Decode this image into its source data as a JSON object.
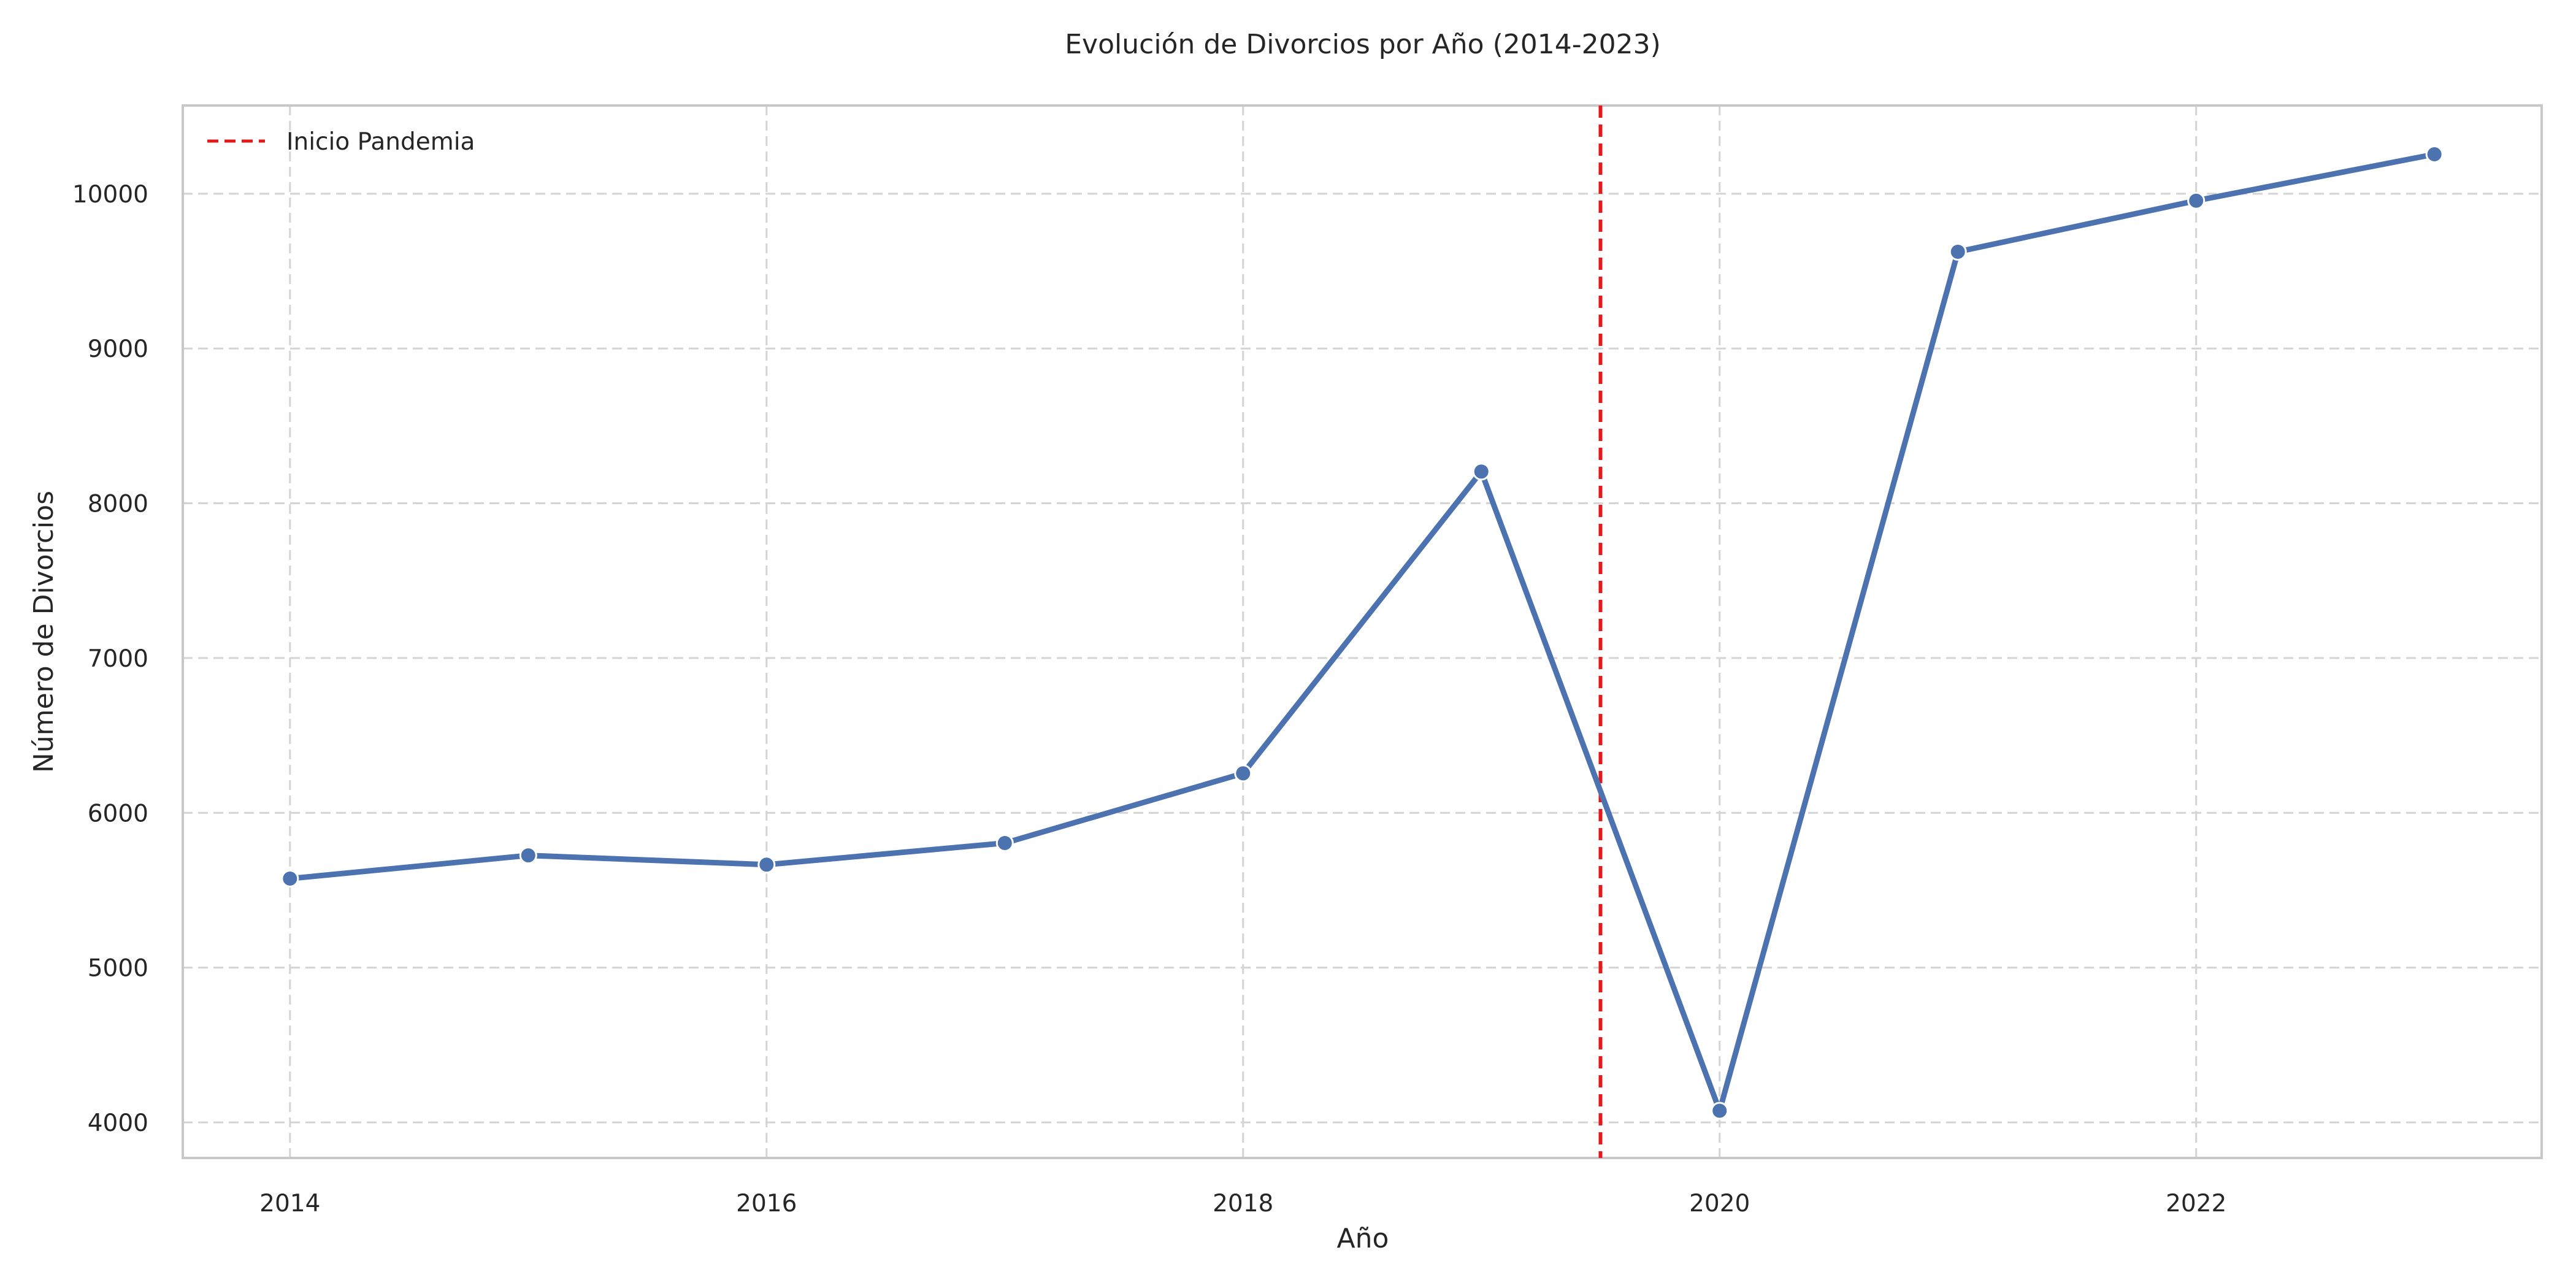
{
  "chart_data": {
    "type": "line",
    "title": "Evolución de Divorcios por Año (2014-2023)",
    "xlabel": "Año",
    "ylabel": "Número de Divorcios",
    "x": [
      2014,
      2015,
      2016,
      2017,
      2018,
      2019,
      2020,
      2021,
      2022,
      2023
    ],
    "series": [
      {
        "values": [
          5575,
          5725,
          5665,
          5805,
          6255,
          8205,
          4075,
          9625,
          9955,
          10255
        ],
        "color": "#4c72b0"
      }
    ],
    "xlim": [
      2013.55,
      2023.45
    ],
    "ylim": [
      3770,
      10570
    ],
    "xticks": [
      2014,
      2016,
      2018,
      2020,
      2022
    ],
    "yticks": [
      4000,
      5000,
      6000,
      7000,
      8000,
      9000,
      10000
    ],
    "reference_lines": [
      {
        "orientation": "vertical",
        "x": 2019.5,
        "label": "Inicio Pandemia",
        "color": "#e31a1c",
        "style": "dashed"
      }
    ],
    "grid": true,
    "legend": {
      "placement": "top-left",
      "entries": [
        {
          "label": "Inicio Pandemia",
          "color": "#e31a1c",
          "style": "dashed"
        }
      ]
    }
  }
}
